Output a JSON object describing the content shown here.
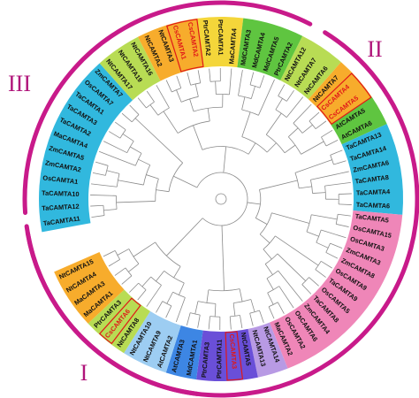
{
  "figure": {
    "groups": [
      {
        "id": "I",
        "label": "I"
      },
      {
        "id": "II",
        "label": "II"
      },
      {
        "id": "III",
        "label": "III"
      }
    ],
    "colors": {
      "outer_ring": "#c81a8a",
      "group_label": "#b0147a",
      "branch": "#8a8a8a",
      "highlight_text": "#e01818",
      "highlight_box": "#e01818",
      "cyan": "#31b8de",
      "pink": "#ef86b8",
      "lilac": "#b89ae4",
      "purple": "#6a4fd8",
      "blue": "#3d86e4",
      "lightblue": "#9dcdf2",
      "yellowgreen": "#b8dc54",
      "green": "#5fc540",
      "yellow": "#f4d63a",
      "orange": "#f7ac2c",
      "magenta": "#e04fa8"
    },
    "leaves": [
      {
        "label": "TaCAMTA11",
        "color": "cyan",
        "highlight": false
      },
      {
        "label": "TaCAMTA12",
        "color": "cyan",
        "highlight": false
      },
      {
        "label": "TaCAMTA10",
        "color": "cyan",
        "highlight": false
      },
      {
        "label": "OsCAMTA1",
        "color": "cyan",
        "highlight": false
      },
      {
        "label": "ZmCAMTA2",
        "color": "cyan",
        "highlight": false
      },
      {
        "label": "ZmCAMTA5",
        "color": "cyan",
        "highlight": false
      },
      {
        "label": "MaCAMTA4",
        "color": "cyan",
        "highlight": false
      },
      {
        "label": "TaCAMTA2",
        "color": "cyan",
        "highlight": false
      },
      {
        "label": "TaCAMTA3",
        "color": "cyan",
        "highlight": false
      },
      {
        "label": "TaCAMTA1",
        "color": "cyan",
        "highlight": false
      },
      {
        "label": "OsCAMTA7",
        "color": "cyan",
        "highlight": false
      },
      {
        "label": "ZmCAMTA7",
        "color": "cyan",
        "highlight": false
      },
      {
        "label": "NtCAMTA17",
        "color": "yellowgreen",
        "highlight": false
      },
      {
        "label": "NtCAMTA19",
        "color": "yellowgreen",
        "highlight": false
      },
      {
        "label": "NtCAMTA16",
        "color": "yellowgreen",
        "highlight": false
      },
      {
        "label": "NtCAMTA2",
        "color": "orange",
        "highlight": false
      },
      {
        "label": "NtCAMTA3",
        "color": "orange",
        "highlight": false
      },
      {
        "label": "CsCAMTA1",
        "color": "orange",
        "highlight": true
      },
      {
        "label": "CsCAMTA2",
        "color": "orange",
        "highlight": true
      },
      {
        "label": "PtrCAMTA2",
        "color": "yellow",
        "highlight": false
      },
      {
        "label": "PtrCAMTA1",
        "color": "yellow",
        "highlight": false
      },
      {
        "label": "MaCAMTA4",
        "color": "yellow",
        "highlight": false
      },
      {
        "label": "MdCAMTA3",
        "color": "green",
        "highlight": false
      },
      {
        "label": "MdCAMTA4",
        "color": "green",
        "highlight": false
      },
      {
        "label": "MdCAMTA5",
        "color": "green",
        "highlight": false
      },
      {
        "label": "PtrCAMTA2",
        "color": "green",
        "highlight": false
      },
      {
        "label": "NtCAMTA12",
        "color": "yellowgreen",
        "highlight": false
      },
      {
        "label": "NtCAMTA7",
        "color": "yellowgreen",
        "highlight": false
      },
      {
        "label": "NtCAMTA6",
        "color": "yellowgreen",
        "highlight": false
      },
      {
        "label": "NtCAMTA7",
        "color": "orange",
        "highlight": false
      },
      {
        "label": "CsCAMTA4",
        "color": "orange",
        "highlight": true
      },
      {
        "label": "CsCAMTA5",
        "color": "orange",
        "highlight": true
      },
      {
        "label": "AtCAMTA5",
        "color": "green",
        "highlight": false
      },
      {
        "label": "AtCAMTA6",
        "color": "green",
        "highlight": false
      },
      {
        "label": "TaCAMTA13",
        "color": "cyan",
        "highlight": false
      },
      {
        "label": "TaCAMTA14",
        "color": "cyan",
        "highlight": false
      },
      {
        "label": "ZmCAMTA6",
        "color": "cyan",
        "highlight": false
      },
      {
        "label": "TaCAMTA8",
        "color": "cyan",
        "highlight": false
      },
      {
        "label": "TaCAMTA4",
        "color": "cyan",
        "highlight": false
      },
      {
        "label": "TaCAMTA6",
        "color": "cyan",
        "highlight": false
      },
      {
        "label": "TaCAMTA5",
        "color": "pink",
        "highlight": false
      },
      {
        "label": "OsCAMTA15",
        "color": "pink",
        "highlight": false
      },
      {
        "label": "OsCAMTA3",
        "color": "pink",
        "highlight": false
      },
      {
        "label": "ZmCAMTA3",
        "color": "pink",
        "highlight": false
      },
      {
        "label": "ZmCAMTA8",
        "color": "pink",
        "highlight": false
      },
      {
        "label": "OsCAMTA9",
        "color": "pink",
        "highlight": false
      },
      {
        "label": "TaCAMTA9",
        "color": "pink",
        "highlight": false
      },
      {
        "label": "OsCAMTA5",
        "color": "pink",
        "highlight": false
      },
      {
        "label": "TaCAMTA8",
        "color": "pink",
        "highlight": false
      },
      {
        "label": "ZmCAMTA4",
        "color": "pink",
        "highlight": false
      },
      {
        "label": "OsCAMTA6",
        "color": "pink",
        "highlight": false
      },
      {
        "label": "OsCAMTA2",
        "color": "pink",
        "highlight": false
      },
      {
        "label": "MaCAMTA2",
        "color": "pink",
        "highlight": false
      },
      {
        "label": "NtCAMTA14",
        "color": "lilac",
        "highlight": false
      },
      {
        "label": "NtCAMTA13",
        "color": "lilac",
        "highlight": false
      },
      {
        "label": "NtCAMTA5",
        "color": "purple",
        "highlight": false
      },
      {
        "label": "CsCAMTA3",
        "color": "purple",
        "highlight": true
      },
      {
        "label": "PtrCAMTA11",
        "color": "purple",
        "highlight": false
      },
      {
        "label": "PtrCAMTA3",
        "color": "purple",
        "highlight": false
      },
      {
        "label": "MdCAMTA1",
        "color": "blue",
        "highlight": false
      },
      {
        "label": "AtCAMTA3",
        "color": "blue",
        "highlight": false
      },
      {
        "label": "AtCAMTA2",
        "color": "lightblue",
        "highlight": false
      },
      {
        "label": "NtCAMTA9",
        "color": "lightblue",
        "highlight": false
      },
      {
        "label": "NtCAMTA10",
        "color": "lightblue",
        "highlight": false
      },
      {
        "label": "NtCAMTA8",
        "color": "yellowgreen",
        "highlight": false
      },
      {
        "label": "CsCAMTA6",
        "color": "yellowgreen",
        "highlight": true
      },
      {
        "label": "PtrCAMTA3",
        "color": "yellowgreen",
        "highlight": false
      },
      {
        "label": "MaCAMTA1",
        "color": "orange",
        "highlight": false
      },
      {
        "label": "MaCAMTA3",
        "color": "orange",
        "highlight": false
      },
      {
        "label": "NtCAMTA4",
        "color": "orange",
        "highlight": false
      },
      {
        "label": "NtCAMTA15",
        "color": "orange",
        "highlight": false
      }
    ]
  }
}
